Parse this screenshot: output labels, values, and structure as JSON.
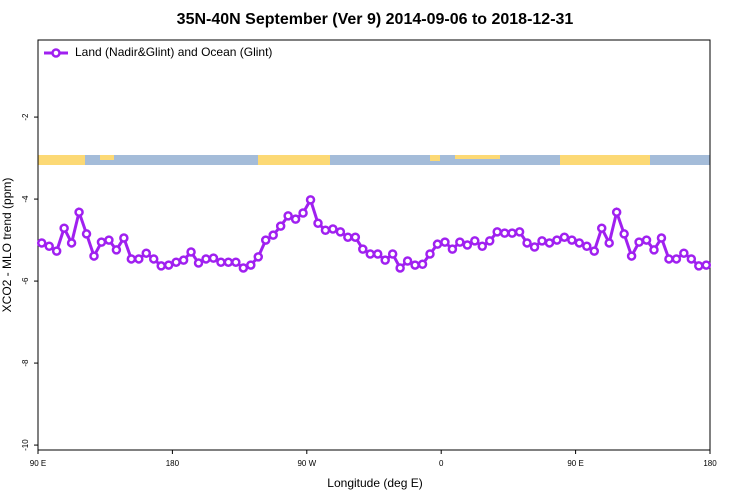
{
  "chart_data": {
    "type": "line",
    "title": "35N-40N September (Ver 9)   2014-09-06 to 2018-12-31",
    "x_label": "Longitude (deg E)",
    "y_label": "XCO2 - MLO trend (ppm)",
    "legend_position": "top-left",
    "x": [
      92.5,
      97.5,
      102.5,
      107.5,
      112.5,
      117.5,
      122.5,
      127.5,
      132.5,
      137.5,
      142.5,
      147.5,
      152.5,
      157.5,
      162.5,
      167.5,
      172.5,
      177.5,
      182.5,
      187.5,
      192.5,
      197.5,
      202.5,
      207.5,
      212.5,
      217.5,
      222.5,
      227.5,
      232.5,
      237.5,
      242.5,
      247.5,
      252.5,
      257.5,
      262.5,
      267.5,
      272.5,
      277.5,
      282.5,
      287.5,
      292.5,
      297.5,
      302.5,
      307.5,
      312.5,
      317.5,
      322.5,
      327.5,
      332.5,
      337.5,
      342.5,
      347.5,
      352.5,
      357.5,
      362.5,
      367.5,
      372.5,
      377.5,
      382.5,
      387.5,
      392.5,
      397.5,
      402.5,
      407.5,
      412.5,
      417.5,
      422.5,
      427.5,
      432.5,
      437.5,
      442.5,
      447.5,
      452.5,
      457.5,
      462.5,
      467.5,
      472.5,
      477.5,
      482.5,
      487.5,
      492.5,
      497.5,
      502.5,
      507.5,
      512.5,
      517.5,
      522.5,
      527.5,
      532.5,
      537.5
    ],
    "series": [
      {
        "name": "Land (Nadir&Glint) and Ocean (Glint)",
        "color": "#a020f0",
        "values": [
          -5.07,
          -5.15,
          -5.27,
          -4.71,
          -5.07,
          -4.32,
          -4.85,
          -5.39,
          -5.05,
          -5.0,
          -5.24,
          -4.95,
          -5.46,
          -5.46,
          -5.32,
          -5.46,
          -5.63,
          -5.61,
          -5.54,
          -5.49,
          -5.29,
          -5.56,
          -5.46,
          -5.44,
          -5.54,
          -5.54,
          -5.54,
          -5.68,
          -5.61,
          -5.41,
          -5.0,
          -4.88,
          -4.66,
          -4.41,
          -4.49,
          -4.34,
          -4.02,
          -4.59,
          -4.76,
          -4.73,
          -4.8,
          -4.93,
          -4.93,
          -5.22,
          -5.34,
          -5.34,
          -5.49,
          -5.34,
          -5.68,
          -5.51,
          -5.61,
          -5.59,
          -5.34,
          -5.1,
          -5.05,
          -5.22,
          -5.05,
          -5.12,
          -5.02,
          -5.15,
          -5.02,
          -4.8,
          -4.83,
          -4.83,
          -4.8,
          -5.07,
          -5.17,
          -5.02,
          -5.07,
          -5.0,
          -4.93,
          -5.0,
          -5.07,
          -5.15,
          -5.27,
          -4.71,
          -5.07,
          -4.32,
          -4.85,
          -5.39,
          -5.05,
          -5.0,
          -5.24,
          -4.95,
          -5.46,
          -5.46,
          -5.32,
          -5.46,
          -5.63,
          -5.61
        ]
      }
    ],
    "xlim": [
      90,
      540
    ],
    "xticks": [
      {
        "value": 90,
        "label": "90 E"
      },
      180,
      {
        "value": 270,
        "label": "90 W"
      },
      {
        "value": 360,
        "label": "0"
      },
      {
        "value": 450,
        "label": "90 E"
      },
      {
        "value": 540,
        "label": "180"
      }
    ],
    "ylim": [
      -10.12,
      -0.12
    ],
    "yticks": [
      -2,
      -4,
      -6,
      -8,
      -10
    ]
  }
}
